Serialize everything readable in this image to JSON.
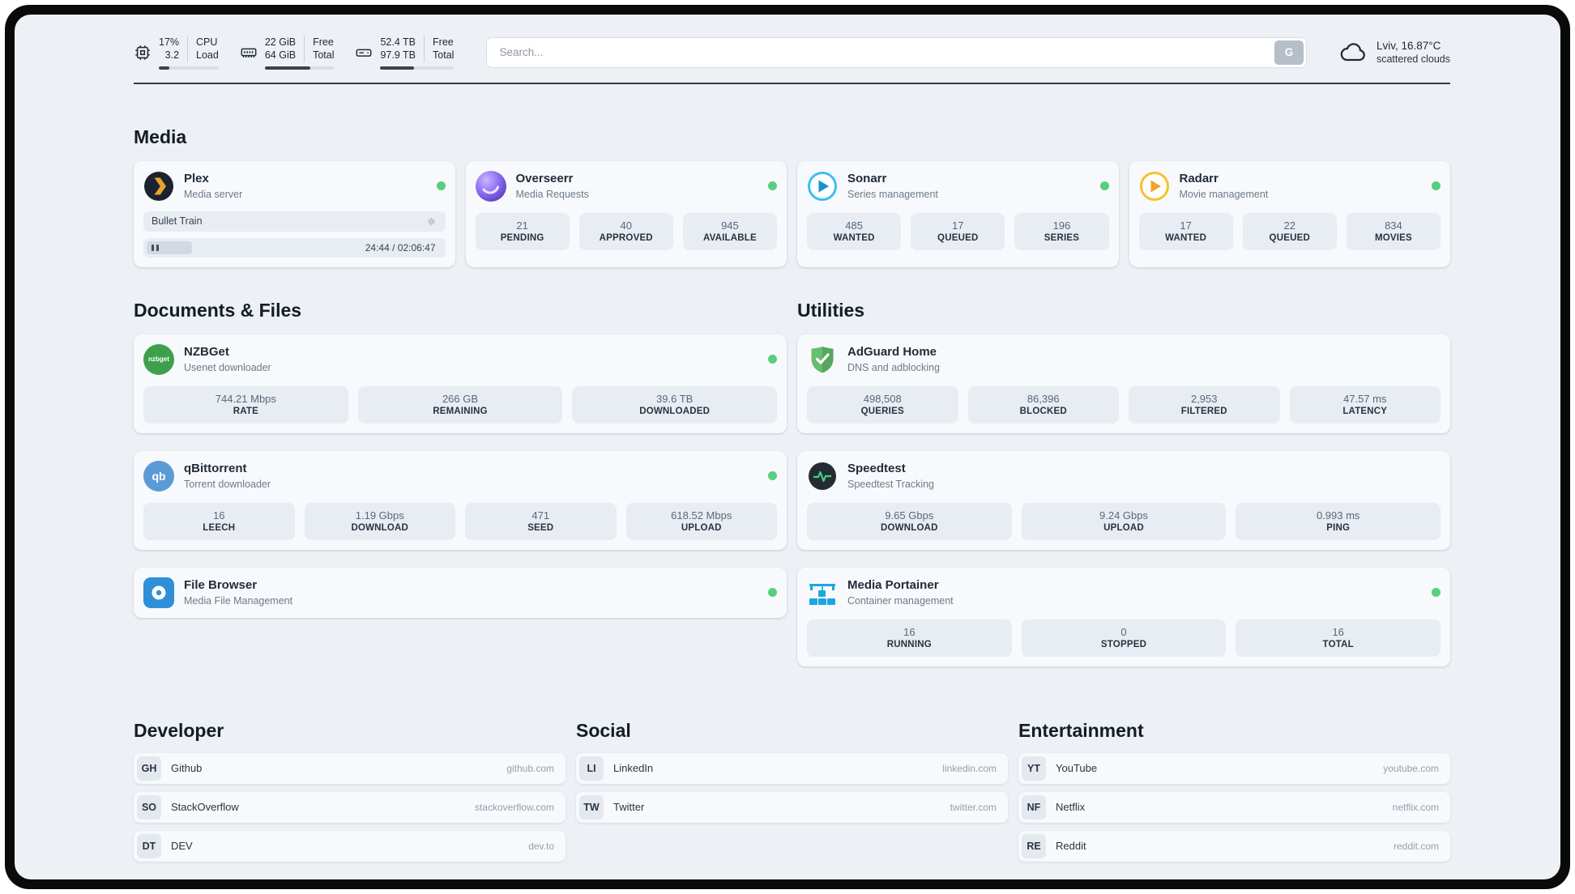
{
  "colors": {
    "status_online": "#57cf7d",
    "plex_orange": "#e8a22b",
    "overseerr_purple": "#8b6cf5",
    "sonarr_blue": "#39c1ef",
    "radarr_yellow": "#f7c12f",
    "nzbget_green": "#3ea04c",
    "qbittorrent_blue": "#5b9bd5",
    "filebrowser_blue": "#2f8fd8",
    "adguard_green": "#68bd6e",
    "speedtest_green": "#3fd283",
    "portainer_blue": "#1ba7e0"
  },
  "topbar": {
    "cpu": {
      "value": "17%",
      "sub": "3.2",
      "label1": "CPU",
      "label2": "Load",
      "progress": 17
    },
    "ram": {
      "value": "22 GiB",
      "sub": "64 GiB",
      "label1": "Free",
      "label2": "Total",
      "progress": 66
    },
    "disk": {
      "value": "52.4 TB",
      "sub": "97.9 TB",
      "label1": "Free",
      "label2": "Total",
      "progress": 46
    },
    "search": {
      "placeholder": "Search...",
      "button_label": "G"
    },
    "weather": {
      "location": "Lviv, 16.87°C",
      "condition": "scattered clouds"
    }
  },
  "media": {
    "title": "Media",
    "plex": {
      "name": "Plex",
      "desc": "Media server",
      "now_playing": "Bullet Train",
      "time": "24:44 / 02:06:47",
      "progress": 20
    },
    "overseerr": {
      "name": "Overseerr",
      "desc": "Media Requests",
      "stats": [
        {
          "value": "21",
          "label": "PENDING"
        },
        {
          "value": "40",
          "label": "APPROVED"
        },
        {
          "value": "945",
          "label": "AVAILABLE"
        }
      ]
    },
    "sonarr": {
      "name": "Sonarr",
      "desc": "Series management",
      "stats": [
        {
          "value": "485",
          "label": "WANTED"
        },
        {
          "value": "17",
          "label": "QUEUED"
        },
        {
          "value": "196",
          "label": "SERIES"
        }
      ]
    },
    "radarr": {
      "name": "Radarr",
      "desc": "Movie management",
      "stats": [
        {
          "value": "17",
          "label": "WANTED"
        },
        {
          "value": "22",
          "label": "QUEUED"
        },
        {
          "value": "834",
          "label": "MOVIES"
        }
      ]
    }
  },
  "documents": {
    "title": "Documents & Files",
    "nzbget": {
      "name": "NZBGet",
      "desc": "Usenet downloader",
      "icon_text": "nzbget",
      "stats": [
        {
          "value": "744.21 Mbps",
          "label": "RATE"
        },
        {
          "value": "266 GB",
          "label": "REMAINING"
        },
        {
          "value": "39.6 TB",
          "label": "DOWNLOADED"
        }
      ]
    },
    "qbittorrent": {
      "name": "qBittorrent",
      "desc": "Torrent downloader",
      "icon_text": "qb",
      "stats": [
        {
          "value": "16",
          "label": "LEECH"
        },
        {
          "value": "1.19 Gbps",
          "label": "DOWNLOAD"
        },
        {
          "value": "471",
          "label": "SEED"
        },
        {
          "value": "618.52 Mbps",
          "label": "UPLOAD"
        }
      ]
    },
    "filebrowser": {
      "name": "File Browser",
      "desc": "Media File Management"
    }
  },
  "utilities": {
    "title": "Utilities",
    "adguard": {
      "name": "AdGuard Home",
      "desc": "DNS and adblocking",
      "stats": [
        {
          "value": "498,508",
          "label": "QUERIES"
        },
        {
          "value": "86,396",
          "label": "BLOCKED"
        },
        {
          "value": "2,953",
          "label": "FILTERED"
        },
        {
          "value": "47.57 ms",
          "label": "LATENCY"
        }
      ]
    },
    "speedtest": {
      "name": "Speedtest",
      "desc": "Speedtest Tracking",
      "stats": [
        {
          "value": "9.65 Gbps",
          "label": "DOWNLOAD"
        },
        {
          "value": "9.24 Gbps",
          "label": "UPLOAD"
        },
        {
          "value": "0.993 ms",
          "label": "PING"
        }
      ]
    },
    "portainer": {
      "name": "Media Portainer",
      "desc": "Container management",
      "stats": [
        {
          "value": "16",
          "label": "RUNNING"
        },
        {
          "value": "0",
          "label": "STOPPED"
        },
        {
          "value": "16",
          "label": "TOTAL"
        }
      ]
    }
  },
  "bookmarks": {
    "developer": {
      "title": "Developer",
      "items": [
        {
          "abbr": "GH",
          "name": "Github",
          "url": "github.com"
        },
        {
          "abbr": "SO",
          "name": "StackOverflow",
          "url": "stackoverflow.com"
        },
        {
          "abbr": "DT",
          "name": "DEV",
          "url": "dev.to"
        }
      ]
    },
    "social": {
      "title": "Social",
      "items": [
        {
          "abbr": "LI",
          "name": "LinkedIn",
          "url": "linkedin.com"
        },
        {
          "abbr": "TW",
          "name": "Twitter",
          "url": "twitter.com"
        }
      ]
    },
    "entertainment": {
      "title": "Entertainment",
      "items": [
        {
          "abbr": "YT",
          "name": "YouTube",
          "url": "youtube.com"
        },
        {
          "abbr": "NF",
          "name": "Netflix",
          "url": "netflix.com"
        },
        {
          "abbr": "RE",
          "name": "Reddit",
          "url": "reddit.com"
        }
      ]
    }
  }
}
